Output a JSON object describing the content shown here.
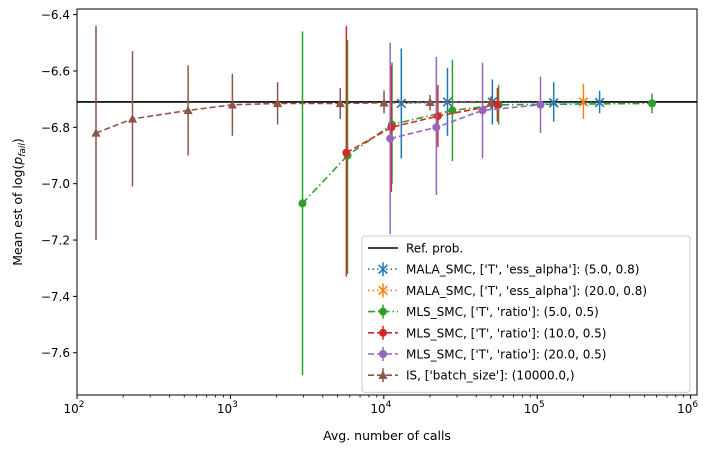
{
  "chart_data": {
    "type": "scatter",
    "title": "",
    "xlabel": "Avg. number of calls",
    "ylabel_main": "Mean est of log(",
    "ylabel_var": "p",
    "ylabel_sub": "fail",
    "ylabel_close": ")",
    "x_scale": "log",
    "xlim": [
      100,
      1100000
    ],
    "ylim": [
      -7.75,
      -6.38
    ],
    "x_ticks": [
      {
        "value": 100,
        "base": "10",
        "exp": "2"
      },
      {
        "value": 1000,
        "base": "10",
        "exp": "3"
      },
      {
        "value": 10000,
        "base": "10",
        "exp": "4"
      },
      {
        "value": 100000,
        "base": "10",
        "exp": "5"
      },
      {
        "value": 1000000,
        "base": "10",
        "exp": "6"
      }
    ],
    "y_ticks": [
      {
        "value": -6.4,
        "label": "−6.4"
      },
      {
        "value": -6.6,
        "label": "−6.6"
      },
      {
        "value": -6.8,
        "label": "−6.8"
      },
      {
        "value": -7.0,
        "label": "−7.0"
      },
      {
        "value": -7.2,
        "label": "−7.2"
      },
      {
        "value": -7.4,
        "label": "−7.4"
      },
      {
        "value": -7.6,
        "label": "−7.6"
      }
    ],
    "grid": false,
    "legend_position": "lower-right",
    "reference": {
      "name": "Ref. prob.",
      "value": -6.71,
      "color": "#000000"
    },
    "series": [
      {
        "name": "MALA_SMC, ['T', 'ess_alpha']: (5.0, 0.8)",
        "color": "#1f77b4",
        "marker": "x",
        "linestyle": "dotted",
        "points": [
          {
            "x": 13000,
            "y": -6.715,
            "lo": -6.91,
            "hi": -6.52
          },
          {
            "x": 26000,
            "y": -6.71,
            "lo": -6.83,
            "hi": -6.59
          },
          {
            "x": 51000,
            "y": -6.71,
            "lo": -6.79,
            "hi": -6.63
          },
          {
            "x": 128000,
            "y": -6.713,
            "lo": -6.78,
            "hi": -6.64
          },
          {
            "x": 255000,
            "y": -6.712,
            "lo": -6.75,
            "hi": -6.67
          }
        ]
      },
      {
        "name": "MALA_SMC, ['T', 'ess_alpha']: (20.0, 0.8)",
        "color": "#ff7f0e",
        "marker": "x",
        "linestyle": "dotted",
        "points": [
          {
            "x": 200000,
            "y": -6.71,
            "lo": -6.77,
            "hi": -6.645
          }
        ]
      },
      {
        "name": "MLS_SMC, ['T', 'ratio']: (5.0, 0.5)",
        "color": "#2ca02c",
        "marker": "o",
        "linestyle": "dashdot",
        "points": [
          {
            "x": 2950,
            "y": -7.07,
            "lo": -7.68,
            "hi": -6.46
          },
          {
            "x": 5800,
            "y": -6.9,
            "lo": -7.32,
            "hi": -6.49
          },
          {
            "x": 11300,
            "y": -6.79,
            "lo": -7.0,
            "hi": -6.57
          },
          {
            "x": 28000,
            "y": -6.74,
            "lo": -6.92,
            "hi": -6.56
          },
          {
            "x": 56000,
            "y": -6.72,
            "lo": -6.79,
            "hi": -6.65
          },
          {
            "x": 560000,
            "y": -6.715,
            "lo": -6.75,
            "hi": -6.68
          }
        ]
      },
      {
        "name": "MLS_SMC, ['T', 'ratio']: (10.0, 0.5)",
        "color": "#d62728",
        "marker": "o",
        "linestyle": "dashed",
        "points": [
          {
            "x": 5700,
            "y": -6.89,
            "lo": -7.33,
            "hi": -6.44
          },
          {
            "x": 11200,
            "y": -6.8,
            "lo": -7.03,
            "hi": -6.58
          },
          {
            "x": 22500,
            "y": -6.76,
            "lo": -6.87,
            "hi": -6.65
          },
          {
            "x": 55000,
            "y": -6.72,
            "lo": -6.78,
            "hi": -6.66
          }
        ]
      },
      {
        "name": "MLS_SMC, ['T', 'ratio']: (20.0, 0.5)",
        "color": "#9467bd",
        "marker": "o",
        "linestyle": "dashed",
        "points": [
          {
            "x": 11000,
            "y": -6.84,
            "lo": -7.18,
            "hi": -6.5
          },
          {
            "x": 22000,
            "y": -6.8,
            "lo": -7.04,
            "hi": -6.55
          },
          {
            "x": 44000,
            "y": -6.74,
            "lo": -6.91,
            "hi": -6.57
          },
          {
            "x": 105000,
            "y": -6.72,
            "lo": -6.82,
            "hi": -6.62
          }
        ]
      },
      {
        "name": "IS, ['batch_size']: (10000.0,)",
        "color": "#8c564b",
        "marker": "^",
        "linestyle": "dashed",
        "points": [
          {
            "x": 133,
            "y": -6.82,
            "lo": -7.2,
            "hi": -6.44
          },
          {
            "x": 230,
            "y": -6.77,
            "lo": -7.01,
            "hi": -6.53
          },
          {
            "x": 530,
            "y": -6.74,
            "lo": -6.9,
            "hi": -6.58
          },
          {
            "x": 1030,
            "y": -6.72,
            "lo": -6.83,
            "hi": -6.61
          },
          {
            "x": 2030,
            "y": -6.715,
            "lo": -6.79,
            "hi": -6.64
          },
          {
            "x": 5200,
            "y": -6.715,
            "lo": -6.77,
            "hi": -6.66
          },
          {
            "x": 10030,
            "y": -6.713,
            "lo": -6.75,
            "hi": -6.67
          },
          {
            "x": 20000,
            "y": -6.711,
            "lo": -6.74,
            "hi": -6.685
          },
          {
            "x": 50000,
            "y": -6.711,
            "lo": -6.735,
            "hi": -6.69
          }
        ]
      }
    ]
  }
}
